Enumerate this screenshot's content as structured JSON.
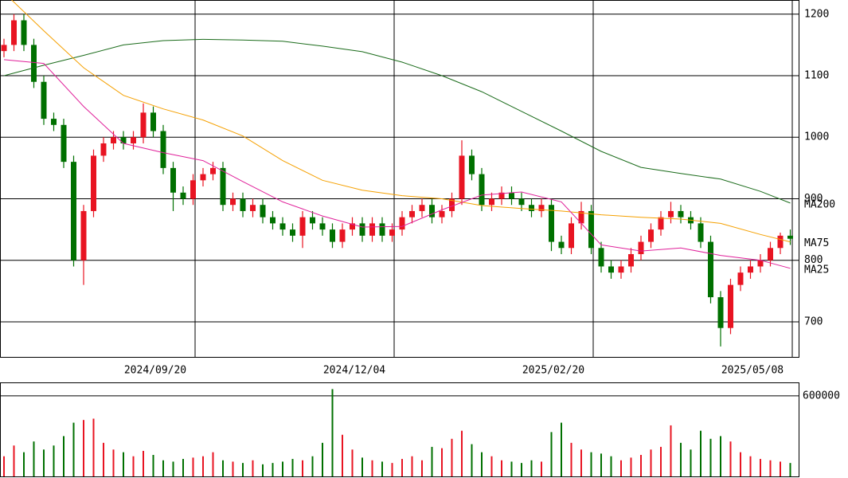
{
  "chart_data": [
    {
      "type": "candlestick",
      "up_color": "#e81422",
      "down_color": "#007000",
      "xlim": [
        -0.4,
        79.84
      ],
      "xticks": [
        {
          "value": 19.2,
          "label": "2024/09/20"
        },
        {
          "value": 39.2,
          "label": "2024/12/04"
        },
        {
          "value": 59.2,
          "label": "2025/02/20"
        },
        {
          "value": 79.2,
          "label": "2025/05/08"
        }
      ],
      "ylim": [
        643,
        1223
      ],
      "yticks": [
        700,
        800,
        900,
        1000,
        1100,
        1200
      ],
      "grid": true,
      "open": [
        1140,
        1150,
        1190,
        1150,
        1090,
        1030,
        1020,
        960,
        800,
        880,
        970,
        990,
        1000,
        990,
        1000,
        1040,
        1010,
        950,
        910,
        900,
        930,
        940,
        950,
        890,
        900,
        880,
        890,
        870,
        860,
        850,
        840,
        870,
        860,
        850,
        830,
        850,
        860,
        840,
        860,
        840,
        850,
        870,
        880,
        890,
        870,
        880,
        900,
        970,
        940,
        890,
        900,
        910,
        900,
        890,
        880,
        890,
        830,
        820,
        860,
        880,
        820,
        790,
        780,
        790,
        810,
        830,
        850,
        870,
        880,
        870,
        860,
        830,
        740,
        690,
        760,
        780,
        790,
        800,
        820,
        840
      ],
      "high": [
        1160,
        1200,
        1200,
        1160,
        1100,
        1040,
        1030,
        970,
        890,
        980,
        1000,
        1010,
        1010,
        1010,
        1055,
        1050,
        1020,
        960,
        920,
        940,
        950,
        960,
        960,
        910,
        910,
        900,
        900,
        880,
        870,
        860,
        880,
        880,
        870,
        860,
        860,
        870,
        870,
        870,
        870,
        860,
        880,
        890,
        900,
        900,
        890,
        910,
        995,
        980,
        950,
        910,
        920,
        920,
        910,
        900,
        900,
        900,
        840,
        870,
        895,
        890,
        830,
        800,
        800,
        820,
        840,
        860,
        880,
        895,
        890,
        880,
        870,
        840,
        750,
        770,
        790,
        800,
        810,
        830,
        845,
        850
      ],
      "low": [
        1130,
        1140,
        1140,
        1080,
        1020,
        1010,
        950,
        790,
        760,
        870,
        960,
        980,
        980,
        980,
        990,
        1000,
        940,
        880,
        890,
        890,
        920,
        930,
        880,
        880,
        870,
        870,
        860,
        850,
        840,
        830,
        820,
        850,
        840,
        820,
        820,
        840,
        830,
        830,
        830,
        830,
        840,
        860,
        870,
        860,
        860,
        870,
        890,
        930,
        880,
        880,
        890,
        890,
        880,
        870,
        870,
        815,
        810,
        810,
        850,
        810,
        780,
        770,
        770,
        780,
        800,
        820,
        840,
        860,
        860,
        850,
        820,
        730,
        660,
        680,
        750,
        770,
        780,
        790,
        810,
        825
      ],
      "close": [
        1150,
        1190,
        1150,
        1090,
        1030,
        1020,
        960,
        800,
        880,
        970,
        990,
        1000,
        990,
        1000,
        1040,
        1010,
        950,
        910,
        900,
        930,
        940,
        950,
        890,
        900,
        880,
        890,
        870,
        860,
        850,
        840,
        870,
        860,
        850,
        830,
        850,
        860,
        840,
        860,
        840,
        850,
        870,
        880,
        890,
        870,
        880,
        900,
        970,
        940,
        890,
        900,
        910,
        900,
        890,
        880,
        890,
        830,
        820,
        860,
        880,
        820,
        790,
        780,
        790,
        810,
        830,
        850,
        870,
        880,
        870,
        860,
        830,
        740,
        690,
        760,
        780,
        790,
        800,
        820,
        840,
        835
      ],
      "series": [
        {
          "name": "MA200",
          "color": "#1a6b1a",
          "x": [
            0,
            4,
            8,
            12,
            16,
            20,
            24,
            28,
            32,
            36,
            40,
            44,
            48,
            52,
            56,
            60,
            64,
            68,
            72,
            76,
            79
          ],
          "values": [
            1100,
            1117,
            1133,
            1150,
            1157,
            1159,
            1158,
            1156,
            1148,
            1139,
            1122,
            1100,
            1074,
            1042,
            1010,
            977,
            951,
            941,
            932,
            912,
            893
          ]
        },
        {
          "name": "MA75",
          "color": "#f5a000",
          "x": [
            0,
            4,
            8,
            12,
            16,
            20,
            24,
            28,
            32,
            36,
            40,
            44,
            48,
            52,
            56,
            60,
            64,
            68,
            72,
            76,
            79
          ],
          "values": [
            1235,
            1173,
            1113,
            1068,
            1046,
            1028,
            1002,
            962,
            930,
            914,
            905,
            900,
            889,
            884,
            880,
            874,
            870,
            867,
            860,
            842,
            830
          ]
        },
        {
          "name": "MA25",
          "color": "#e0209a",
          "x": [
            0,
            4,
            8,
            12,
            16,
            20,
            24,
            28,
            32,
            36,
            40,
            44,
            48,
            52,
            56,
            60,
            64,
            68,
            72,
            76,
            79
          ],
          "values": [
            1126,
            1120,
            1050,
            990,
            975,
            962,
            928,
            895,
            872,
            854,
            855,
            882,
            906,
            911,
            895,
            825,
            815,
            820,
            808,
            800,
            787
          ]
        }
      ]
    },
    {
      "type": "bar",
      "ylim": [
        0,
        700000
      ],
      "yticks": [
        600000
      ],
      "grid": true,
      "values": [
        150000,
        230000,
        180000,
        260000,
        200000,
        230000,
        300000,
        400000,
        420000,
        430000,
        250000,
        200000,
        180000,
        150000,
        190000,
        160000,
        120000,
        110000,
        130000,
        140000,
        150000,
        180000,
        120000,
        110000,
        100000,
        120000,
        90000,
        100000,
        110000,
        130000,
        120000,
        150000,
        250000,
        650000,
        310000,
        200000,
        140000,
        120000,
        110000,
        100000,
        130000,
        150000,
        120000,
        220000,
        210000,
        280000,
        340000,
        240000,
        180000,
        150000,
        120000,
        110000,
        100000,
        120000,
        110000,
        330000,
        400000,
        250000,
        200000,
        180000,
        170000,
        150000,
        120000,
        140000,
        160000,
        200000,
        220000,
        380000,
        250000,
        200000,
        340000,
        280000,
        300000,
        260000,
        180000,
        150000,
        130000,
        120000,
        110000,
        100000
      ]
    }
  ]
}
